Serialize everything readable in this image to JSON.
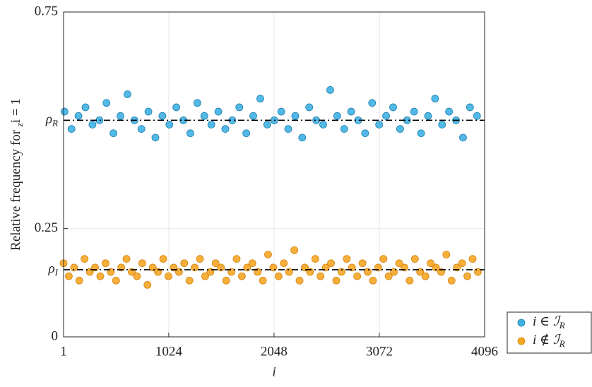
{
  "chart_data": {
    "type": "scatter",
    "ylabel": "Relative frequency for zi = 1",
    "xlabel": "i",
    "xlim": [
      1,
      4096
    ],
    "xticks": [
      1,
      1024,
      2048,
      3072,
      4096
    ],
    "ylim": [
      0,
      0.75
    ],
    "yticks": [
      0,
      {
        "value": 0.155,
        "label": "ρI"
      },
      0.25,
      {
        "value": 0.5,
        "label": "ρR"
      },
      0.75
    ],
    "grid": true,
    "legend": "outside lower right",
    "series": [
      {
        "name": "i ∈ ℐR",
        "color": "#3fb0e3",
        "edge": "#1f7fb0",
        "x": [
          10,
          78,
          146,
          214,
          282,
          350,
          418,
          486,
          554,
          622,
          690,
          758,
          826,
          894,
          962,
          1030,
          1098,
          1166,
          1234,
          1302,
          1370,
          1438,
          1506,
          1574,
          1642,
          1710,
          1778,
          1846,
          1914,
          1982,
          2050,
          2118,
          2186,
          2254,
          2322,
          2390,
          2458,
          2526,
          2594,
          2662,
          2730,
          2798,
          2866,
          2934,
          3002,
          3070,
          3138,
          3206,
          3274,
          3342,
          3410,
          3478,
          3546,
          3614,
          3682,
          3750,
          3818,
          3886,
          3954,
          4022
        ],
        "values": [
          0.52,
          0.48,
          0.51,
          0.53,
          0.49,
          0.5,
          0.54,
          0.47,
          0.51,
          0.56,
          0.5,
          0.48,
          0.52,
          0.46,
          0.51,
          0.49,
          0.53,
          0.5,
          0.47,
          0.54,
          0.51,
          0.49,
          0.52,
          0.48,
          0.5,
          0.53,
          0.47,
          0.51,
          0.55,
          0.49,
          0.5,
          0.52,
          0.48,
          0.51,
          0.46,
          0.53,
          0.5,
          0.49,
          0.57,
          0.51,
          0.48,
          0.52,
          0.5,
          0.47,
          0.54,
          0.49,
          0.51,
          0.53,
          0.48,
          0.5,
          0.52,
          0.47,
          0.51,
          0.55,
          0.49,
          0.52,
          0.5,
          0.46,
          0.53,
          0.51
        ]
      },
      {
        "name": "i ∉ ℐR",
        "color": "#f5a623",
        "edge": "#d4820f",
        "x": [
          1,
          52,
          103,
          154,
          205,
          256,
          307,
          358,
          409,
          460,
          511,
          562,
          613,
          664,
          715,
          766,
          817,
          868,
          919,
          970,
          1021,
          1072,
          1123,
          1174,
          1225,
          1276,
          1327,
          1378,
          1429,
          1480,
          1531,
          1582,
          1633,
          1684,
          1735,
          1786,
          1837,
          1888,
          1939,
          1990,
          2041,
          2092,
          2143,
          2194,
          2245,
          2296,
          2347,
          2398,
          2449,
          2500,
          2551,
          2602,
          2653,
          2704,
          2755,
          2806,
          2857,
          2908,
          2959,
          3010,
          3061,
          3112,
          3163,
          3214,
          3265,
          3316,
          3367,
          3418,
          3469,
          3520,
          3571,
          3622,
          3673,
          3724,
          3775,
          3826,
          3877,
          3928,
          3979,
          4030
        ],
        "values": [
          0.17,
          0.14,
          0.16,
          0.13,
          0.18,
          0.15,
          0.16,
          0.14,
          0.17,
          0.15,
          0.13,
          0.16,
          0.18,
          0.15,
          0.14,
          0.17,
          0.12,
          0.16,
          0.15,
          0.18,
          0.14,
          0.16,
          0.15,
          0.17,
          0.13,
          0.16,
          0.18,
          0.14,
          0.15,
          0.17,
          0.16,
          0.13,
          0.15,
          0.18,
          0.14,
          0.16,
          0.17,
          0.15,
          0.13,
          0.19,
          0.16,
          0.14,
          0.17,
          0.15,
          0.2,
          0.13,
          0.16,
          0.15,
          0.18,
          0.14,
          0.16,
          0.17,
          0.13,
          0.15,
          0.18,
          0.16,
          0.14,
          0.17,
          0.15,
          0.13,
          0.16,
          0.18,
          0.14,
          0.15,
          0.17,
          0.16,
          0.13,
          0.18,
          0.15,
          0.14,
          0.17,
          0.16,
          0.15,
          0.19,
          0.13,
          0.16,
          0.17,
          0.14,
          0.18,
          0.15
        ]
      }
    ]
  }
}
